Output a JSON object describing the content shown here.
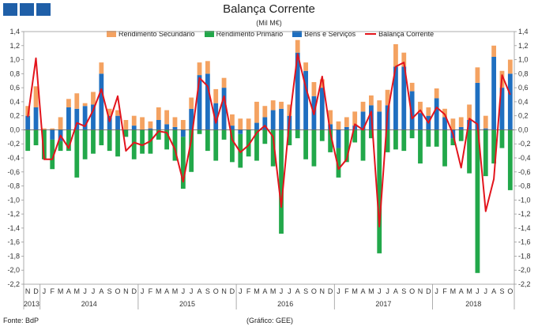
{
  "header": {
    "title": "Balança Corrente",
    "subtitle": "(Mil M€)"
  },
  "footer": {
    "source": "Fonte: BdP",
    "credit": "(Gráfico: GEE)"
  },
  "chart_data": {
    "type": "bar",
    "stacked": true,
    "title": "Balança Corrente",
    "subtitle": "(Mil M€)",
    "ylim": [
      -2.2,
      1.4
    ],
    "ytick_step": 0.2,
    "yticks": [
      "1,4",
      "1,2",
      "1,0",
      "0,8",
      "0,6",
      "0,4",
      "0,2",
      "0,0",
      "-0,2",
      "-0,4",
      "-0,6",
      "-0,8",
      "-1,0",
      "-1,2",
      "-1,4",
      "-1,6",
      "-1,8",
      "-2,0",
      "-2,2"
    ],
    "categories": [
      "N",
      "D",
      "J",
      "F",
      "M",
      "A",
      "M",
      "J",
      "J",
      "A",
      "S",
      "O",
      "N",
      "D",
      "J",
      "F",
      "M",
      "A",
      "M",
      "J",
      "J",
      "A",
      "S",
      "O",
      "N",
      "D",
      "J",
      "F",
      "M",
      "A",
      "M",
      "J",
      "J",
      "A",
      "S",
      "O",
      "N",
      "D",
      "J",
      "F",
      "M",
      "A",
      "M",
      "J",
      "J",
      "A",
      "S",
      "O",
      "N",
      "D",
      "J",
      "F",
      "M",
      "A",
      "M",
      "J",
      "J",
      "A",
      "S",
      "O"
    ],
    "years": [
      {
        "label": "2013",
        "start": 0,
        "count": 2
      },
      {
        "label": "2014",
        "start": 2,
        "count": 12
      },
      {
        "label": "2015",
        "start": 14,
        "count": 12
      },
      {
        "label": "2016",
        "start": 26,
        "count": 12
      },
      {
        "label": "2017",
        "start": 38,
        "count": 12
      },
      {
        "label": "2018",
        "start": 50,
        "count": 10
      }
    ],
    "colors": {
      "secundario": "#f4a261",
      "primario": "#22a84a",
      "bens": "#1f6fc0",
      "balanca": "#e3141c"
    },
    "series": [
      {
        "name": "Rendimento Secundário",
        "key": "secundario",
        "values": [
          0.14,
          0.3,
          0.02,
          0.02,
          0.18,
          0.12,
          0.22,
          0.04,
          0.18,
          0.16,
          0.1,
          0.08,
          0.14,
          0.14,
          0.18,
          0.1,
          0.18,
          0.2,
          0.14,
          0.14,
          0.16,
          0.18,
          0.18,
          0.2,
          0.14,
          0.16,
          0.16,
          0.16,
          0.3,
          0.16,
          0.14,
          0.1,
          0.16,
          0.18,
          0.12,
          0.2,
          0.12,
          0.2,
          0.12,
          0.14,
          0.2,
          0.14,
          0.14,
          0.16,
          0.22,
          0.32,
          0.2,
          0.12,
          0.16,
          0.12,
          0.14,
          0.12,
          0.16,
          0.14,
          0.22,
          0.22,
          0.18,
          0.16,
          0.24,
          0.2
        ]
      },
      {
        "name": "Rendimento Primário",
        "key": "primario",
        "values": [
          -0.3,
          -0.22,
          -0.42,
          -0.42,
          -0.14,
          -0.3,
          -0.68,
          -0.42,
          -0.34,
          -0.22,
          -0.3,
          -0.38,
          -0.1,
          -0.42,
          -0.34,
          -0.34,
          -0.14,
          -0.28,
          -0.44,
          -0.74,
          -0.6,
          -0.06,
          -0.3,
          -0.44,
          -0.14,
          -0.46,
          -0.48,
          -0.38,
          -0.44,
          -0.2,
          -0.52,
          -1.48,
          -0.22,
          -0.12,
          -0.42,
          -0.52,
          -0.16,
          -0.32,
          -0.42,
          -0.46,
          -0.18,
          -0.44,
          -0.12,
          -1.76,
          -0.32,
          -0.28,
          -0.3,
          -0.12,
          -0.48,
          -0.24,
          -0.24,
          -0.52,
          -0.1,
          -0.16,
          -0.62,
          -2.04,
          -0.66,
          -0.48,
          -0.26,
          -0.86
        ]
      },
      {
        "name": "Bens e Serviços",
        "key": "bens",
        "values": [
          0.2,
          0.32,
          0.0,
          -0.14,
          -0.16,
          0.32,
          0.3,
          0.34,
          0.36,
          0.8,
          0.2,
          0.2,
          0.0,
          0.06,
          0.0,
          0.02,
          0.14,
          0.08,
          0.04,
          -0.1,
          0.3,
          0.78,
          0.8,
          0.38,
          0.6,
          0.06,
          -0.06,
          0.0,
          0.1,
          0.18,
          0.28,
          0.3,
          0.2,
          1.1,
          0.84,
          0.48,
          0.6,
          0.08,
          -0.26,
          0.04,
          0.06,
          0.26,
          0.35,
          0.26,
          0.35,
          0.9,
          0.9,
          0.55,
          0.24,
          0.2,
          0.45,
          0.18,
          -0.12,
          0.04,
          0.14,
          0.67,
          0.02,
          1.04,
          0.6,
          0.8
        ]
      },
      {
        "name": "Balança Corrente",
        "key": "balanca",
        "type": "line",
        "values": [
          0.18,
          1.02,
          -0.42,
          -0.42,
          -0.08,
          -0.26,
          0.1,
          0.05,
          0.28,
          0.58,
          0.12,
          0.48,
          -0.3,
          -0.18,
          -0.22,
          -0.16,
          -0.02,
          -0.04,
          -0.28,
          -0.74,
          -0.14,
          0.74,
          0.62,
          0.1,
          0.48,
          -0.14,
          -0.32,
          -0.22,
          -0.04,
          0.06,
          -0.1,
          -1.1,
          0.14,
          1.08,
          0.6,
          0.22,
          0.76,
          -0.04,
          -0.56,
          -0.42,
          0.08,
          0.0,
          0.26,
          -1.38,
          0.24,
          0.9,
          0.96,
          0.16,
          0.28,
          0.1,
          0.32,
          0.22,
          -0.06,
          -0.54,
          0.16,
          0.08,
          -1.16,
          -0.7,
          0.78,
          0.5
        ]
      }
    ],
    "legend": [
      "Rendimento Secundário",
      "Rendimento Primário",
      "Bens e Serviços",
      "Balança Corrente"
    ]
  }
}
